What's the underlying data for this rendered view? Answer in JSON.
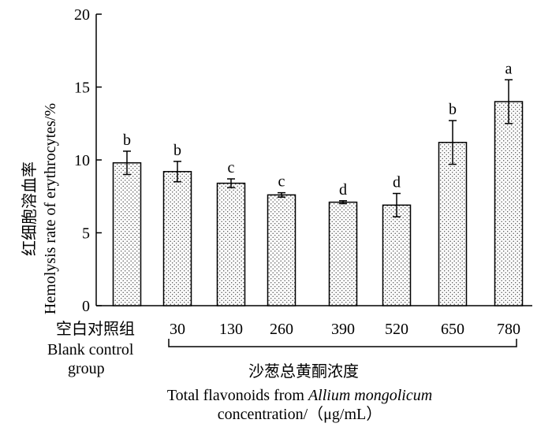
{
  "chart_data": {
    "type": "bar",
    "title": "",
    "categories": [
      "空白对照组",
      "30",
      "130",
      "260",
      "390",
      "520",
      "650",
      "780"
    ],
    "blank_group_label_en": [
      "Blank control",
      "group"
    ],
    "values": [
      9.8,
      9.2,
      8.4,
      7.6,
      7.1,
      6.9,
      11.2,
      14.0
    ],
    "errors": [
      0.8,
      0.7,
      0.3,
      0.15,
      0.1,
      0.8,
      1.5,
      1.5
    ],
    "significance": [
      "b",
      "b",
      "c",
      "c",
      "d",
      "d",
      "b",
      "a"
    ],
    "ylim": [
      0,
      20
    ],
    "yticks": [
      0,
      5,
      10,
      15,
      20
    ],
    "ylabel": {
      "zh": "红细胞溶血率",
      "en": "Hemolysis rate of erythrocytes/%"
    },
    "xlabel": {
      "zh": "沙葱总黄酮浓度",
      "en_prefix": "Total flavonoids from ",
      "en_italic": "Allium mongolicum",
      "en_line2": "concentration/（μg/mL）"
    },
    "grid": false,
    "legend": "none",
    "bar_fill": "dotted"
  }
}
